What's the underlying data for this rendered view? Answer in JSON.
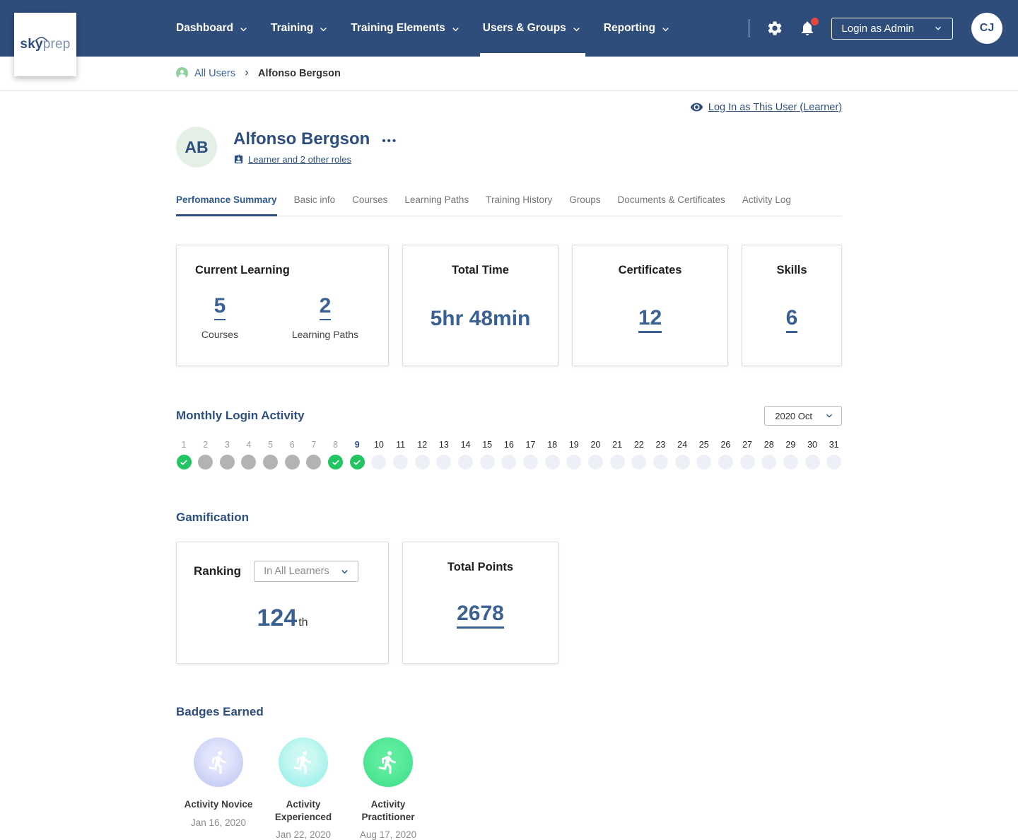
{
  "colors": {
    "navbar_bg": "#2e4d7b",
    "heading_navy": "#2d4e7e",
    "accent_blue": "#3a6191",
    "check_green": "#21c561",
    "missed_gray": "#b3b3b3",
    "empty_circle": "#edf1f7",
    "notification_red": "#e8473f",
    "breadcrumb_icon_green": "#8fd19e"
  },
  "navbar": {
    "logo": {
      "part1": "sky",
      "part2": "prep"
    },
    "items": [
      {
        "label": "Dashboard",
        "active": false
      },
      {
        "label": "Training",
        "active": false
      },
      {
        "label": "Training Elements",
        "active": false
      },
      {
        "label": "Users & Groups",
        "active": true
      },
      {
        "label": "Reporting",
        "active": false
      }
    ],
    "login_as_label": "Login as Admin",
    "avatar_initials": "CJ"
  },
  "breadcrumb": {
    "root": "All Users",
    "current": "Alfonso Bergson"
  },
  "header": {
    "login_as_user_link": "Log In as This User (Learner)",
    "avatar_initials": "AB",
    "name": "Alfonso Bergson",
    "menu_ellipsis": "•••",
    "roles_link": "Learner and 2 other roles"
  },
  "tabs": [
    {
      "label": "Perfomance Summary",
      "active": true
    },
    {
      "label": "Basic info",
      "active": false
    },
    {
      "label": "Courses",
      "active": false
    },
    {
      "label": "Learning Paths",
      "active": false
    },
    {
      "label": "Training History",
      "active": false
    },
    {
      "label": "Groups",
      "active": false
    },
    {
      "label": "Documents & Certificates",
      "active": false
    },
    {
      "label": "Activity Log",
      "active": false
    }
  ],
  "summary_cards": {
    "current_learning": {
      "title": "Current Learning",
      "stats": [
        {
          "value": "5",
          "label": "Courses"
        },
        {
          "value": "2",
          "label": "Learning Paths"
        }
      ]
    },
    "total_time": {
      "title": "Total Time",
      "value": "5hr 48min"
    },
    "certificates": {
      "title": "Certificates",
      "value": "12"
    },
    "skills": {
      "title": "Skills",
      "value": "6"
    }
  },
  "monthly_login": {
    "title": "Monthly Login Activity",
    "month_selector": "2020 Oct",
    "today": 9,
    "days": [
      {
        "day": 1,
        "state": "checked"
      },
      {
        "day": 2,
        "state": "missed"
      },
      {
        "day": 3,
        "state": "missed"
      },
      {
        "day": 4,
        "state": "missed"
      },
      {
        "day": 5,
        "state": "missed"
      },
      {
        "day": 6,
        "state": "missed"
      },
      {
        "day": 7,
        "state": "missed"
      },
      {
        "day": 8,
        "state": "checked"
      },
      {
        "day": 9,
        "state": "checked"
      },
      {
        "day": 10,
        "state": "empty"
      },
      {
        "day": 11,
        "state": "empty"
      },
      {
        "day": 12,
        "state": "empty"
      },
      {
        "day": 13,
        "state": "empty"
      },
      {
        "day": 14,
        "state": "empty"
      },
      {
        "day": 15,
        "state": "empty"
      },
      {
        "day": 16,
        "state": "empty"
      },
      {
        "day": 17,
        "state": "empty"
      },
      {
        "day": 18,
        "state": "empty"
      },
      {
        "day": 19,
        "state": "empty"
      },
      {
        "day": 20,
        "state": "empty"
      },
      {
        "day": 21,
        "state": "empty"
      },
      {
        "day": 22,
        "state": "empty"
      },
      {
        "day": 23,
        "state": "empty"
      },
      {
        "day": 24,
        "state": "empty"
      },
      {
        "day": 25,
        "state": "empty"
      },
      {
        "day": 26,
        "state": "empty"
      },
      {
        "day": 27,
        "state": "empty"
      },
      {
        "day": 28,
        "state": "empty"
      },
      {
        "day": 29,
        "state": "empty"
      },
      {
        "day": 30,
        "state": "empty"
      },
      {
        "day": 31,
        "state": "empty"
      }
    ]
  },
  "gamification": {
    "title": "Gamification",
    "ranking": {
      "title": "Ranking",
      "scope_selector": "In All Learners",
      "value": "124",
      "suffix": "th"
    },
    "total_points": {
      "title": "Total Points",
      "value": "2678"
    }
  },
  "badges": {
    "title": "Badges Earned",
    "items": [
      {
        "name": "Activity Novice",
        "date": "Jan 16, 2020",
        "inner_color": "#e2e5fb",
        "outer_color": "#bdc4f2"
      },
      {
        "name": "Activity Experienced",
        "date": "Jan 22, 2020",
        "inner_color": "#ccf8f3",
        "outer_color": "#8feee7"
      },
      {
        "name": "Activity Practitioner",
        "date": "Aug 17, 2020",
        "inner_color": "#5eec9e",
        "outer_color": "#3ce089"
      }
    ]
  }
}
